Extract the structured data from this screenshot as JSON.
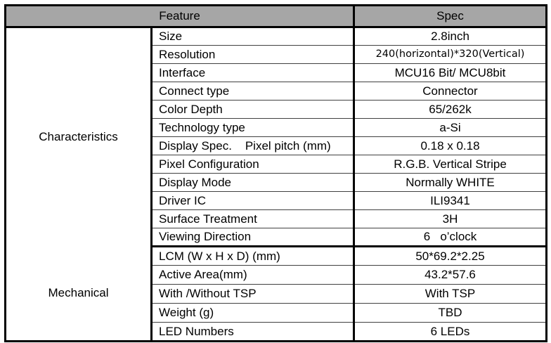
{
  "header": {
    "feature_col": "Feature",
    "spec_col": "Spec"
  },
  "sections": [
    {
      "name": "Characteristics",
      "rows": [
        {
          "feature": "Size",
          "spec": "2.8inch"
        },
        {
          "feature": "Resolution",
          "spec": "240(horizontal)*320(Vertical)"
        },
        {
          "feature": "Interface",
          "spec": "MCU16 Bit/ MCU8bit"
        },
        {
          "feature": "Connect type",
          "spec": "Connector"
        },
        {
          "feature": "Color Depth",
          "spec": "65/262k"
        },
        {
          "feature": "Technology type",
          "spec": "a-Si"
        },
        {
          "feature": "Display Spec.    Pixel pitch (mm)",
          "spec": "0.18 x 0.18"
        },
        {
          "feature": "Pixel Configuration",
          "spec": "R.G.B. Vertical Stripe"
        },
        {
          "feature": "Display Mode",
          "spec": "Normally WHITE"
        },
        {
          "feature": "Driver IC",
          "spec": "ILI9341"
        },
        {
          "feature": "Surface Treatment",
          "spec": "3H"
        },
        {
          "feature": "Viewing Direction",
          "spec": "6   o’clock"
        }
      ]
    },
    {
      "name": "Mechanical",
      "rows": [
        {
          "feature": "LCM (W x H x D) (mm)",
          "spec": "50*69.2*2.25"
        },
        {
          "feature": "Active Area(mm)",
          "spec": "43.2*57.6"
        },
        {
          "feature": "With /Without TSP",
          "spec": "With TSP"
        },
        {
          "feature": "Weight (g)",
          "spec": "TBD"
        },
        {
          "feature": "LED Numbers",
          "spec": "6 LEDs"
        }
      ]
    }
  ],
  "colors": {
    "header_bg": "#a6a6a6",
    "outer_border": "#000000",
    "row_line": "#404040",
    "text": "#000000"
  }
}
